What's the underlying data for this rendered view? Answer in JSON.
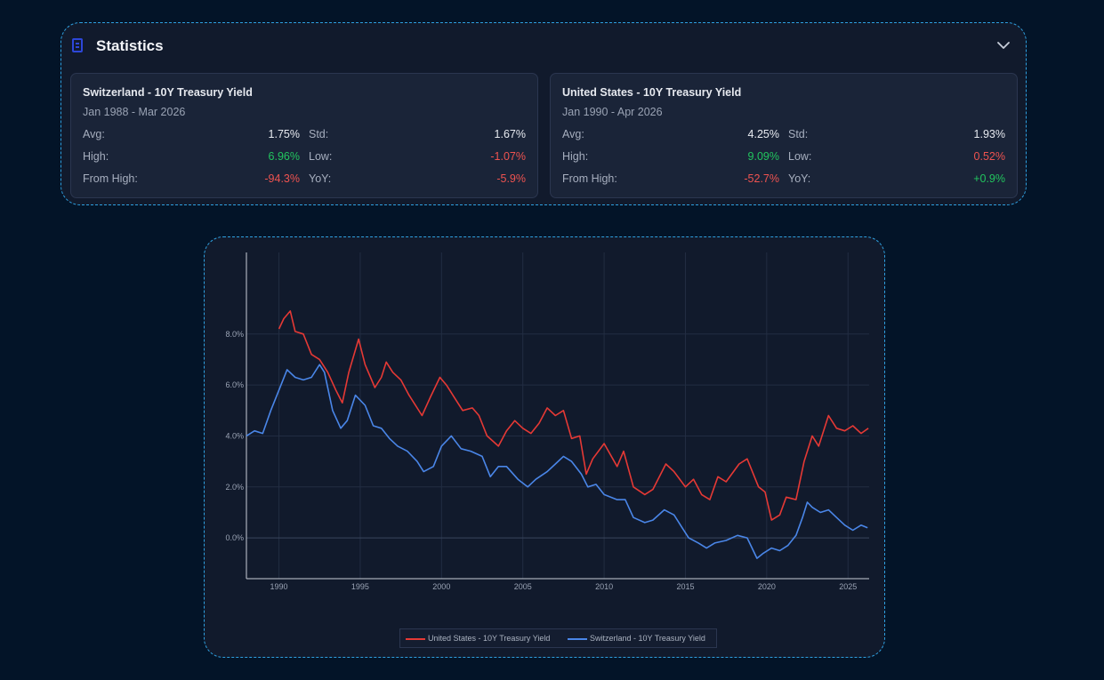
{
  "stats": {
    "title": "Statistics",
    "cards": [
      {
        "title": "Switzerland - 10Y Treasury Yield",
        "range": "Jan 1988 - Mar 2026",
        "avg_label": "Avg:",
        "avg": "1.75%",
        "std_label": "Std:",
        "std": "1.67%",
        "high_label": "High:",
        "high": "6.96%",
        "low_label": "Low:",
        "low": "-1.07%",
        "from_high_label": "From High:",
        "from_high": "-94.3%",
        "yoy_label": "YoY:",
        "yoy": "-5.9%"
      },
      {
        "title": "United States - 10Y Treasury Yield",
        "range": "Jan 1990 - Apr 2026",
        "avg_label": "Avg:",
        "avg": "4.25%",
        "std_label": "Std:",
        "std": "1.93%",
        "high_label": "High:",
        "high": "9.09%",
        "low_label": "Low:",
        "low": "0.52%",
        "from_high_label": "From High:",
        "from_high": "-52.7%",
        "yoy_label": "YoY:",
        "yoy": "+0.9%"
      }
    ]
  },
  "colors": {
    "us": "#e53935",
    "ch": "#4a86e8",
    "positive": "#22c55e",
    "negative": "#ef5350",
    "accent_border": "#2ea0e0",
    "icon": "#2d47d8"
  },
  "icons": {
    "stats": "document-icon",
    "toggle": "chevron-down-icon"
  },
  "chart_data": {
    "type": "line",
    "title": "",
    "xlabel": "",
    "ylabel": "",
    "xlim": [
      1988,
      2026.3
    ],
    "ylim": [
      -1.6,
      11.2
    ],
    "x_ticks": [
      1990,
      1995,
      2000,
      2005,
      2010,
      2015,
      2020,
      2025
    ],
    "y_ticks": [
      0,
      2,
      4,
      6,
      8
    ],
    "y_tick_labels": [
      "0.0%",
      "2.0%",
      "4.0%",
      "6.0%",
      "8.0%"
    ],
    "grid": true,
    "legend_position": "bottom-center",
    "series": [
      {
        "name": "United States - 10Y Treasury Yield",
        "x": [
          1990.0,
          1990.3,
          1990.7,
          1991.0,
          1991.5,
          1992.0,
          1992.5,
          1993.0,
          1993.5,
          1993.9,
          1994.3,
          1994.9,
          1995.3,
          1995.9,
          1996.3,
          1996.6,
          1997.0,
          1997.5,
          1998.0,
          1998.8,
          1999.3,
          1999.9,
          2000.3,
          2000.8,
          2001.3,
          2001.9,
          2002.3,
          2002.8,
          2003.5,
          2004.0,
          2004.5,
          2005.0,
          2005.5,
          2006.0,
          2006.5,
          2007.0,
          2007.5,
          2008.0,
          2008.5,
          2008.9,
          2009.3,
          2010.0,
          2010.8,
          2011.2,
          2011.8,
          2012.5,
          2013.0,
          2013.8,
          2014.3,
          2015.0,
          2015.5,
          2016.0,
          2016.5,
          2017.0,
          2017.5,
          2018.3,
          2018.8,
          2019.5,
          2019.9,
          2020.3,
          2020.8,
          2021.2,
          2021.8,
          2022.3,
          2022.8,
          2023.2,
          2023.8,
          2024.3,
          2024.8,
          2025.3,
          2025.8,
          2026.25
        ],
        "values": [
          8.2,
          8.6,
          8.9,
          8.1,
          8.0,
          7.2,
          7.0,
          6.5,
          5.8,
          5.3,
          6.5,
          7.8,
          6.8,
          5.9,
          6.3,
          6.9,
          6.5,
          6.2,
          5.6,
          4.8,
          5.5,
          6.3,
          6.0,
          5.5,
          5.0,
          5.1,
          4.8,
          4.0,
          3.6,
          4.2,
          4.6,
          4.3,
          4.1,
          4.5,
          5.1,
          4.8,
          5.0,
          3.9,
          4.0,
          2.5,
          3.1,
          3.7,
          2.8,
          3.4,
          2.0,
          1.7,
          1.9,
          2.9,
          2.6,
          2.0,
          2.3,
          1.7,
          1.5,
          2.4,
          2.2,
          2.9,
          3.1,
          2.0,
          1.8,
          0.7,
          0.9,
          1.6,
          1.5,
          3.0,
          4.0,
          3.6,
          4.8,
          4.3,
          4.2,
          4.4,
          4.1,
          4.3
        ]
      },
      {
        "name": "Switzerland - 10Y Treasury Yield",
        "x": [
          1988.0,
          1988.5,
          1989.0,
          1989.5,
          1990.0,
          1990.5,
          1991.0,
          1991.5,
          1992.0,
          1992.5,
          1992.8,
          1993.3,
          1993.8,
          1994.2,
          1994.7,
          1995.3,
          1995.8,
          1996.3,
          1996.8,
          1997.3,
          1997.9,
          1998.5,
          1998.9,
          1999.5,
          2000.0,
          2000.6,
          2001.2,
          2001.8,
          2002.5,
          2003.0,
          2003.5,
          2004.0,
          2004.7,
          2005.3,
          2005.8,
          2006.5,
          2007.0,
          2007.5,
          2008.0,
          2008.6,
          2009.0,
          2009.5,
          2010.0,
          2010.8,
          2011.3,
          2011.8,
          2012.5,
          2013.0,
          2013.7,
          2014.3,
          2014.8,
          2015.2,
          2015.8,
          2016.3,
          2016.8,
          2017.5,
          2018.2,
          2018.8,
          2019.4,
          2019.8,
          2020.3,
          2020.8,
          2021.3,
          2021.8,
          2022.2,
          2022.5,
          2022.8,
          2023.3,
          2023.8,
          2024.3,
          2024.8,
          2025.3,
          2025.8,
          2026.2
        ],
        "values": [
          4.0,
          4.2,
          4.1,
          5.0,
          5.8,
          6.6,
          6.3,
          6.2,
          6.3,
          6.8,
          6.5,
          5.0,
          4.3,
          4.6,
          5.6,
          5.2,
          4.4,
          4.3,
          3.9,
          3.6,
          3.4,
          3.0,
          2.6,
          2.8,
          3.6,
          4.0,
          3.5,
          3.4,
          3.2,
          2.4,
          2.8,
          2.8,
          2.3,
          2.0,
          2.3,
          2.6,
          2.9,
          3.2,
          3.0,
          2.5,
          2.0,
          2.1,
          1.7,
          1.5,
          1.5,
          0.8,
          0.6,
          0.7,
          1.1,
          0.9,
          0.4,
          0.0,
          -0.2,
          -0.4,
          -0.2,
          -0.1,
          0.1,
          0.0,
          -0.8,
          -0.6,
          -0.4,
          -0.5,
          -0.3,
          0.1,
          0.8,
          1.4,
          1.2,
          1.0,
          1.1,
          0.8,
          0.5,
          0.3,
          0.5,
          0.4
        ]
      }
    ]
  }
}
